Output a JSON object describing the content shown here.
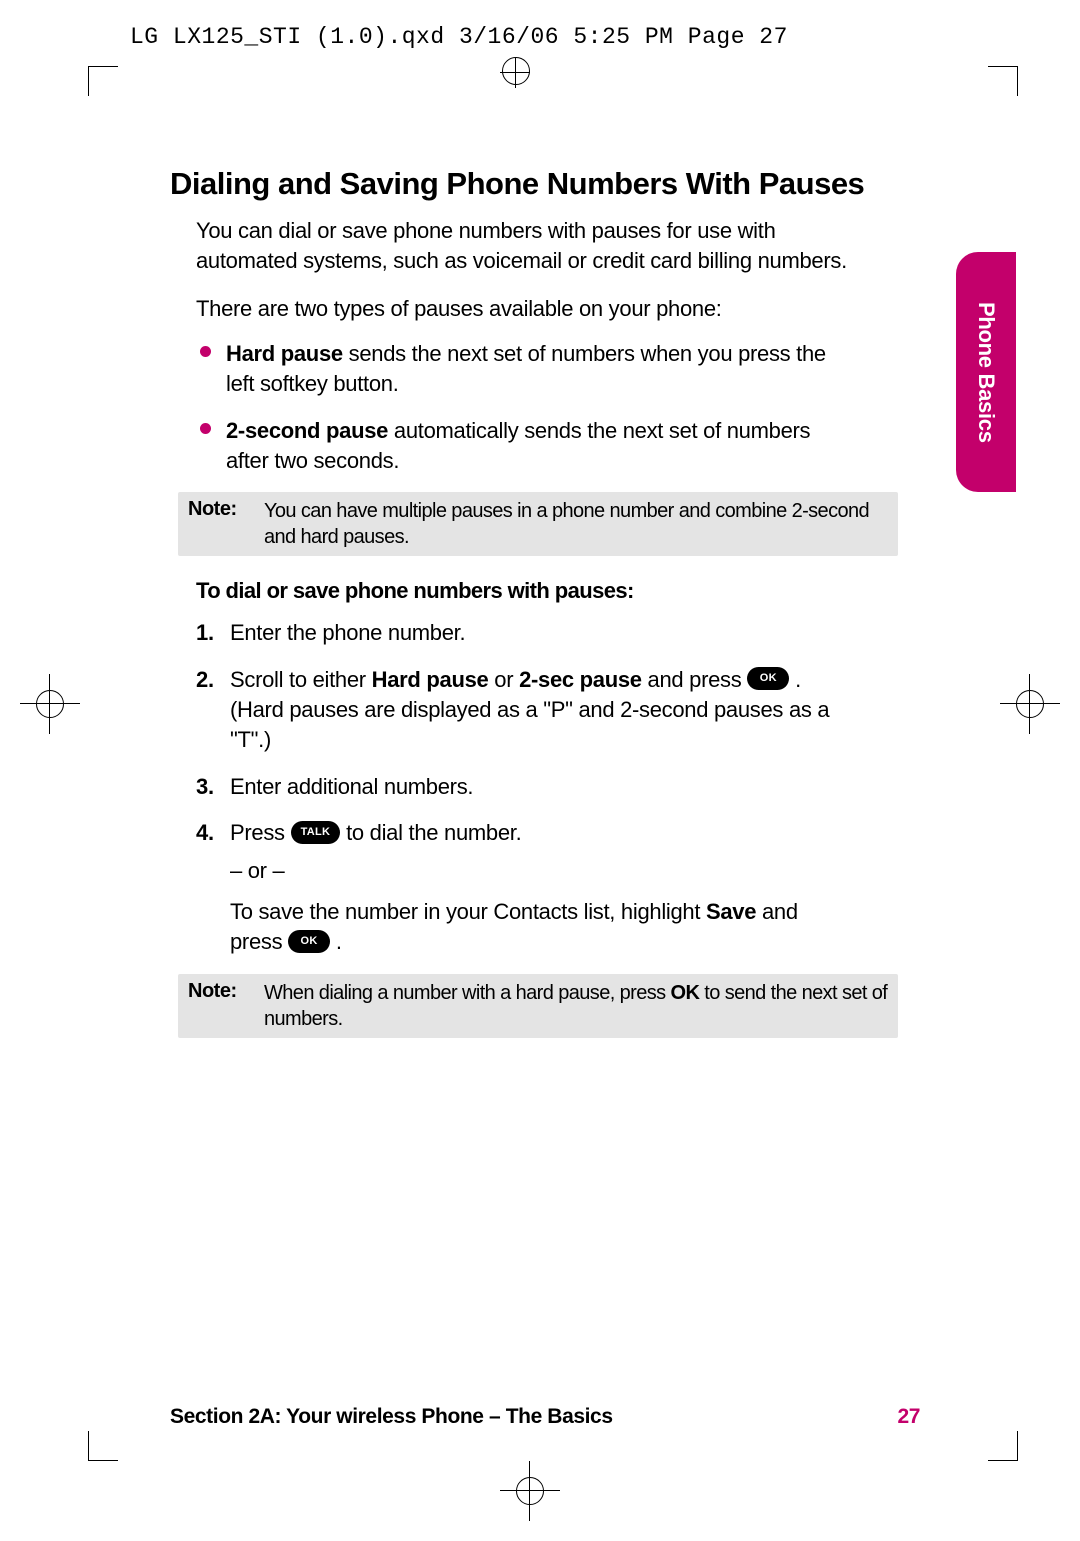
{
  "meta": {
    "header_line": "LG LX125_STI (1.0).qxd  3/16/06  5:25 PM  Page 27"
  },
  "colors": {
    "accent": "#c3006b",
    "note_bg": "#e4e4e4",
    "text": "#000000",
    "bg": "#ffffff"
  },
  "title": "Dialing and Saving Phone Numbers With Pauses",
  "intro": "You can dial or save phone numbers with pauses for use with automated systems, such as voicemail or credit card billing numbers.",
  "lead": "There are two types of pauses available on your phone:",
  "bullets": [
    {
      "bold": "Hard pause",
      "rest": " sends the next set of numbers when you press the left softkey button."
    },
    {
      "bold": "2-second pause",
      "rest": " automatically sends the next set of numbers after two seconds."
    }
  ],
  "note1": {
    "label": "Note:",
    "text": "You can have multiple pauses in a phone number and combine 2-second and hard pauses."
  },
  "subhead": "To dial or save phone numbers with pauses:",
  "steps": {
    "s1": "Enter the phone number.",
    "s2_a": "Scroll to either ",
    "s2_b1": "Hard pause",
    "s2_mid": " or ",
    "s2_b2": "2-sec pause",
    "s2_c": " and press ",
    "s2_key": "OK",
    "s2_d": " . (Hard pauses are displayed as a \"P\" and 2-second pauses as a \"T\".)",
    "s3": "Enter additional numbers.",
    "s4_a": "Press ",
    "s4_key": "TALK",
    "s4_b": " to dial the number.",
    "or": "– or –",
    "s4_c": "To save the number in your Contacts list, highlight ",
    "s4_bold": "Save",
    "s4_d": " and press ",
    "s4_key2": "OK",
    "s4_e": " ."
  },
  "note2": {
    "label": "Note:",
    "text_a": "When dialing a number with a hard pause, press ",
    "text_bold": "OK",
    "text_b": " to send the next set of numbers."
  },
  "side_tab": "Phone Basics",
  "footer": {
    "section": "Section 2A: Your wireless Phone – The Basics",
    "page": "27"
  }
}
